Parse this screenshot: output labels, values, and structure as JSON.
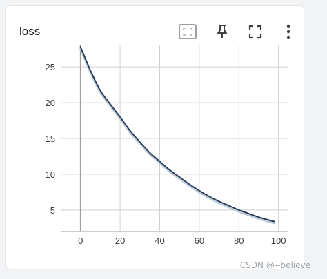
{
  "card": {
    "title": "loss"
  },
  "toolbar": {
    "icons": [
      "fit-domain-icon",
      "pin-icon",
      "fullscreen-icon",
      "more-vert-icon"
    ]
  },
  "watermark": "CSDN @--believe",
  "colors": {
    "line": "#2e3f5c",
    "line_shadow": "#b6c7d6",
    "grid": "#d0d0d0",
    "axis": "#9e9e9e",
    "text": "#3c4043"
  },
  "chart_data": {
    "type": "line",
    "title": "loss",
    "xlim": [
      -10,
      105
    ],
    "ylim": [
      2,
      28
    ],
    "xticks": [
      0,
      20,
      40,
      60,
      80,
      100
    ],
    "yticks": [
      5,
      10,
      15,
      20,
      25
    ],
    "grid": true,
    "series": [
      {
        "x": [
          0,
          5,
          10,
          15,
          20,
          25,
          30,
          35,
          40,
          45,
          50,
          55,
          60,
          65,
          70,
          75,
          80,
          85,
          90,
          95,
          98
        ],
        "values": [
          27.8,
          24.5,
          21.7,
          19.8,
          18.0,
          16.1,
          14.5,
          13.0,
          11.8,
          10.6,
          9.6,
          8.6,
          7.7,
          6.9,
          6.2,
          5.6,
          5.0,
          4.5,
          4.0,
          3.6,
          3.4
        ]
      }
    ]
  }
}
